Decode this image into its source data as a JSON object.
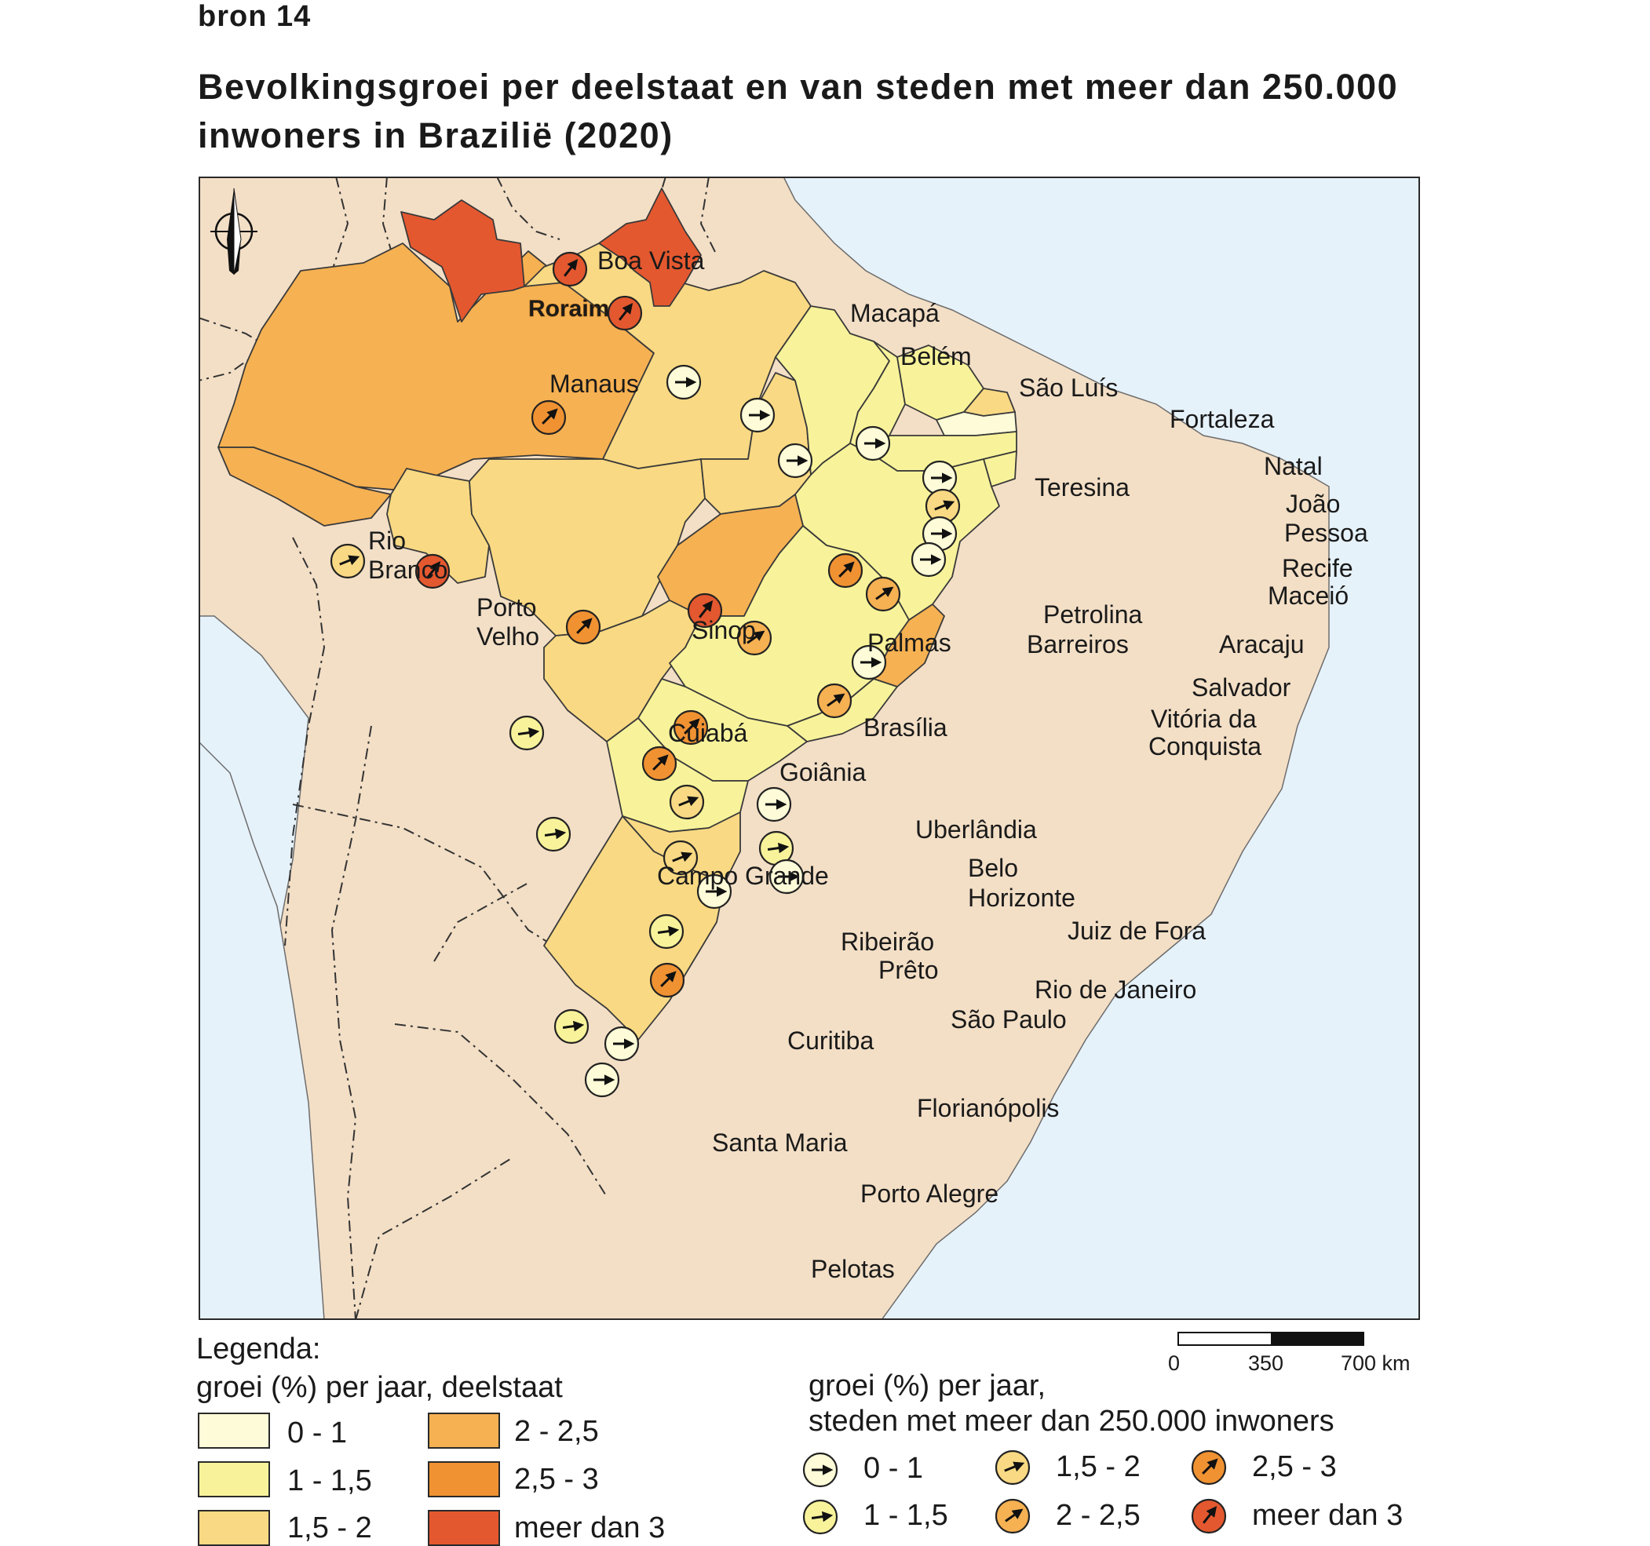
{
  "source_label": "bron 14",
  "title_line1": "Bevolkingsgroei per deelstaat en van steden met meer dan 250.000",
  "title_line2": "inwoners in Brazilië (2020)",
  "colors": {
    "ocean": "#e6f2fa",
    "foreign": "#f3dfc6",
    "c0": "#fefcd8",
    "c1": "#f8f39a",
    "c2": "#f9d983",
    "c3": "#f6b152",
    "c4": "#f09232",
    "c5": "#e4582f"
  },
  "map": {
    "north_icon": "north-arrow-icon",
    "state_label": "Roraima",
    "cities": [
      {
        "name": "Boa Vista",
        "cls": "c5"
      },
      {
        "name": "Macapá",
        "cls": "c5"
      },
      {
        "name": "Belém",
        "cls": "c0"
      },
      {
        "name": "Manaus",
        "cls": "c4"
      },
      {
        "name": "São Luís",
        "cls": "c0"
      },
      {
        "name": "Fortaleza",
        "cls": "c0"
      },
      {
        "name": "Teresina",
        "cls": "c0"
      },
      {
        "name": "Natal",
        "cls": "c0"
      },
      {
        "name": "João Pessoa",
        "cls": "c2"
      },
      {
        "name": "Recife",
        "cls": "c0"
      },
      {
        "name": "Maceió",
        "cls": "c0"
      },
      {
        "name": "Rio Branco",
        "cls": "c2"
      },
      {
        "name": "Porto Velho",
        "cls": "c5"
      },
      {
        "name": "Petrolina",
        "cls": "c4"
      },
      {
        "name": "Aracaju",
        "cls": "c3"
      },
      {
        "name": "Sinop",
        "cls": "c4"
      },
      {
        "name": "Palmas",
        "cls": "c5"
      },
      {
        "name": "Barreiros",
        "cls": "c3"
      },
      {
        "name": "Salvador",
        "cls": "c0"
      },
      {
        "name": "Vitória da Conquista",
        "cls": "c3"
      },
      {
        "name": "Cuiabá",
        "cls": "c1"
      },
      {
        "name": "Brasília",
        "cls": "c4"
      },
      {
        "name": "Goiânia",
        "cls": "c4"
      },
      {
        "name": "Uberlândia",
        "cls": "c2"
      },
      {
        "name": "Belo Horizonte",
        "cls": "c0"
      },
      {
        "name": "Campo Grande",
        "cls": "c1"
      },
      {
        "name": "Ribeirão Prêto",
        "cls": "c2"
      },
      {
        "name": "Juiz de Fora",
        "cls": "c1"
      },
      {
        "name": "Rio de Janeiro",
        "cls": "c0"
      },
      {
        "name": "São Paulo",
        "cls": "c0"
      },
      {
        "name": "Curitiba",
        "cls": "c1"
      },
      {
        "name": "Florianópolis",
        "cls": "c4"
      },
      {
        "name": "Santa Maria",
        "cls": "c1"
      },
      {
        "name": "Porto Alegre",
        "cls": "c0"
      },
      {
        "name": "Pelotas",
        "cls": "c0"
      }
    ],
    "labels": {
      "boa_vista": "Boa Vista",
      "macapa": "Macapá",
      "belem": "Belém",
      "manaus": "Manaus",
      "sao_luis": "São Luís",
      "fortaleza": "Fortaleza",
      "teresina": "Teresina",
      "natal": "Natal",
      "joao": "João",
      "pessoa": "Pessoa",
      "recife": "Recife",
      "maceio": "Maceió",
      "rio": "Rio",
      "branco": "Branco",
      "porto": "Porto",
      "velho": "Velho",
      "petrolina": "Petrolina",
      "aracaju": "Aracaju",
      "sinop": "Sinop",
      "palmas": "Palmas",
      "barreiros": "Barreiros",
      "salvador": "Salvador",
      "vitoria_da": "Vitória da",
      "conquista": "Conquista",
      "cuiaba": "Cuiabá",
      "brasilia": "Brasília",
      "goiania": "Goiânia",
      "uberlandia": "Uberlândia",
      "belo": "Belo",
      "horizonte": "Horizonte",
      "campo_grande": "Campo Grande",
      "ribeirao": "Ribeirão",
      "preto": "Prêto",
      "juiz": "Juiz de Fora",
      "rio_de_janeiro": "Rio de Janeiro",
      "sao_paulo": "São Paulo",
      "curitiba": "Curitiba",
      "florianopolis": "Florianópolis",
      "santa_maria": "Santa Maria",
      "porto_alegre": "Porto Alegre",
      "pelotas": "Pelotas"
    }
  },
  "scale": {
    "ticks": [
      "0",
      "350",
      "700 km"
    ]
  },
  "legend": {
    "heading": "Legenda:",
    "states_title": "groei (%) per jaar, deelstaat",
    "states": [
      {
        "label": "0 - 1",
        "color": "#fefcd8"
      },
      {
        "label": "1 - 1,5",
        "color": "#f8f39a"
      },
      {
        "label": "1,5 - 2",
        "color": "#f9d983"
      },
      {
        "label": "2 - 2,5",
        "color": "#f6b152"
      },
      {
        "label": "2,5 - 3",
        "color": "#f09232"
      },
      {
        "label": "meer dan 3",
        "color": "#e4582f"
      }
    ],
    "cities_title_1": "groei (%) per jaar,",
    "cities_title_2": "steden met meer dan 250.000 inwoners",
    "cities": [
      {
        "label": "0 - 1",
        "color": "#fefcd8"
      },
      {
        "label": "1 - 1,5",
        "color": "#f8f39a"
      },
      {
        "label": "1,5 - 2",
        "color": "#f9d983"
      },
      {
        "label": "2 - 2,5",
        "color": "#f6b152"
      },
      {
        "label": "2,5 - 3",
        "color": "#f09232"
      },
      {
        "label": "meer dan 3",
        "color": "#e4582f"
      }
    ]
  }
}
